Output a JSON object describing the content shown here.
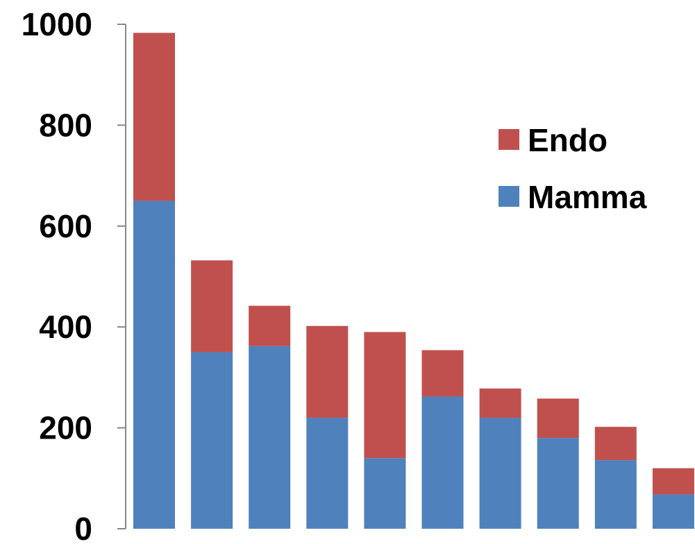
{
  "chart_data": {
    "type": "bar",
    "stacked": true,
    "categories": [
      "",
      "",
      "",
      "",
      "",
      "",
      "",
      "",
      "",
      ""
    ],
    "series": [
      {
        "name": "Mamma",
        "color": "#4F81BD",
        "values": [
          650,
          350,
          362,
          220,
          140,
          262,
          220,
          180,
          136,
          68
        ]
      },
      {
        "name": "Endo",
        "color": "#C0504D",
        "values": [
          333,
          182,
          80,
          182,
          250,
          92,
          58,
          78,
          66,
          52
        ]
      }
    ],
    "title": "",
    "xlabel": "",
    "ylabel": "",
    "ylim": [
      0,
      1000
    ],
    "yticks": [
      "0",
      "200",
      "400",
      "600",
      "800",
      "1000"
    ],
    "grid": false,
    "legend_position": "right",
    "legend_entries": [
      "Endo",
      "Mamma"
    ]
  }
}
